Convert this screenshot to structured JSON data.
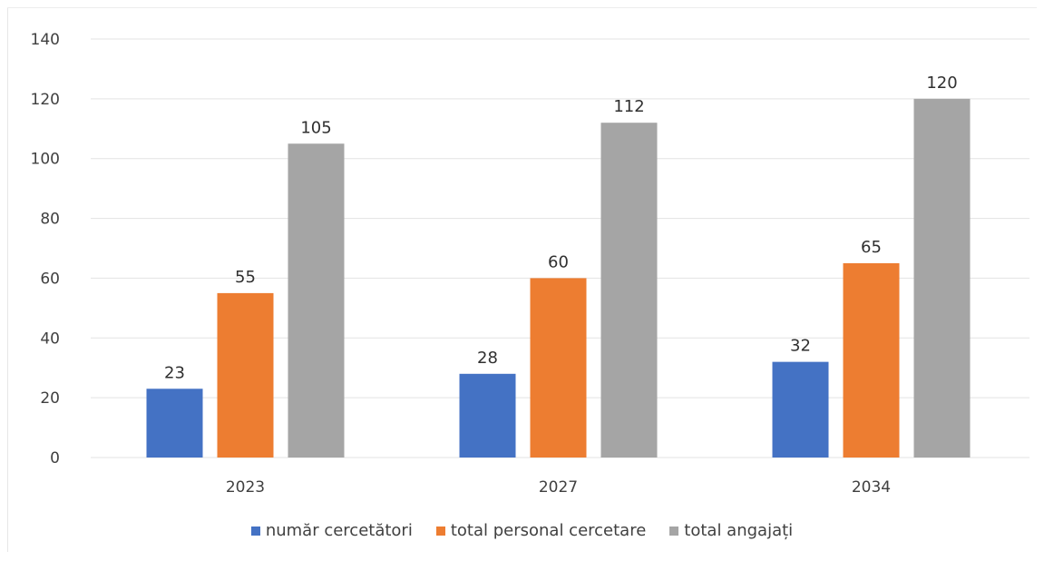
{
  "chart_data": {
    "type": "bar",
    "title": "",
    "xlabel": "",
    "ylabel": "",
    "categories": [
      "2023",
      "2027",
      "2034"
    ],
    "ylim": [
      0,
      140
    ],
    "yticks": [
      0,
      20,
      40,
      60,
      80,
      100,
      120,
      140
    ],
    "grid": true,
    "legend_position": "bottom",
    "series": [
      {
        "name": "număr cercetători",
        "color": "#4472c4",
        "values": [
          23,
          28,
          32
        ]
      },
      {
        "name": "total personal cercetare",
        "color": "#ed7d31",
        "values": [
          55,
          60,
          65
        ]
      },
      {
        "name": "total angajați",
        "color": "#a5a5a5",
        "values": [
          105,
          112,
          120
        ]
      }
    ],
    "data_labels": true
  }
}
